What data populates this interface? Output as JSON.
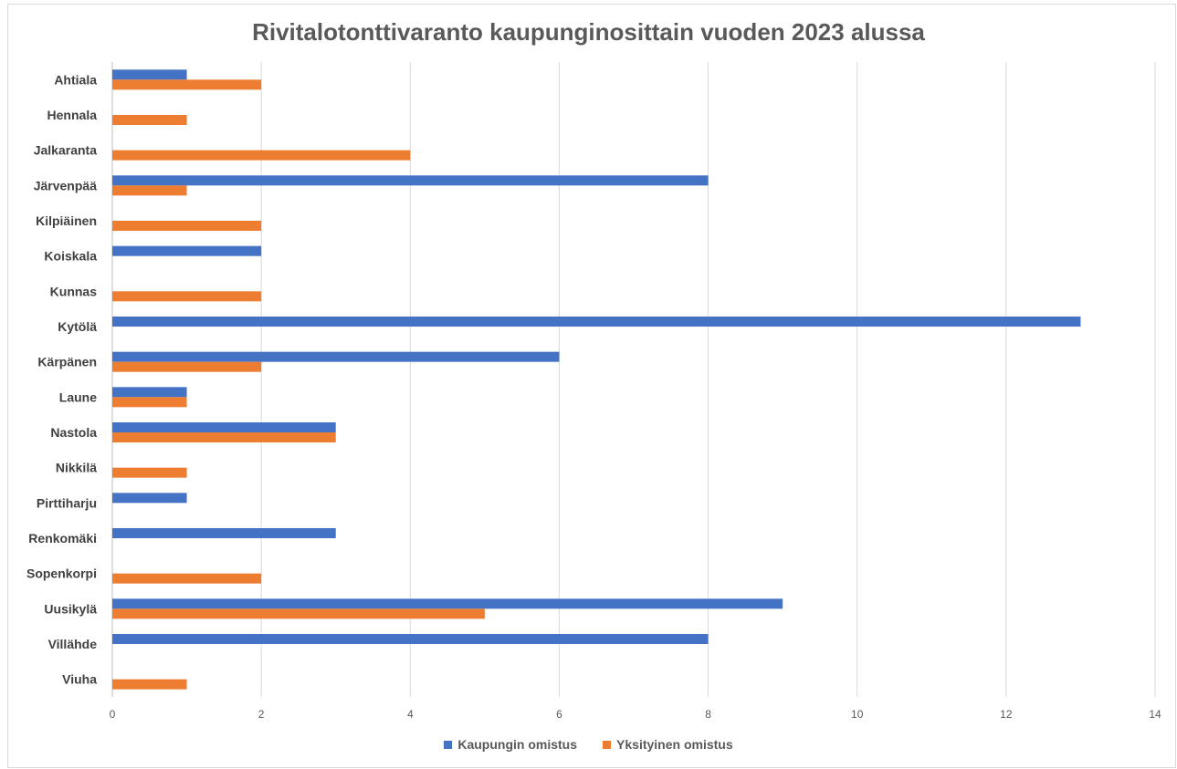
{
  "chart_data": {
    "type": "bar",
    "orientation": "horizontal",
    "title": "Rivitalotonttivaranto kaupunginosittain vuoden 2023 alussa",
    "xlabel": "",
    "ylabel": "",
    "xlim": [
      0,
      14
    ],
    "x_ticks": [
      0,
      2,
      4,
      6,
      8,
      10,
      12,
      14
    ],
    "grid": true,
    "legend_position": "bottom",
    "categories": [
      "Ahtiala",
      "Hennala",
      "Jalkaranta",
      "Järvenpää",
      "Kilpiäinen",
      "Koiskala",
      "Kunnas",
      "Kytölä",
      "Kärpänen",
      "Laune",
      "Nastola",
      "Nikkilä",
      "Pirttiharju",
      "Renkomäki",
      "Sopenkorpi",
      "Uusikylä",
      "Villähde",
      "Viuha"
    ],
    "series": [
      {
        "name": "Kaupungin omistus",
        "color": "#4472c4",
        "values": [
          1,
          0,
          0,
          8,
          0,
          2,
          0,
          13,
          6,
          1,
          3,
          0,
          1,
          3,
          0,
          9,
          8,
          0
        ]
      },
      {
        "name": "Yksityinen omistus",
        "color": "#ed7d31",
        "values": [
          2,
          1,
          4,
          1,
          2,
          0,
          2,
          0,
          2,
          1,
          3,
          1,
          0,
          0,
          2,
          5,
          0,
          1
        ]
      }
    ]
  }
}
